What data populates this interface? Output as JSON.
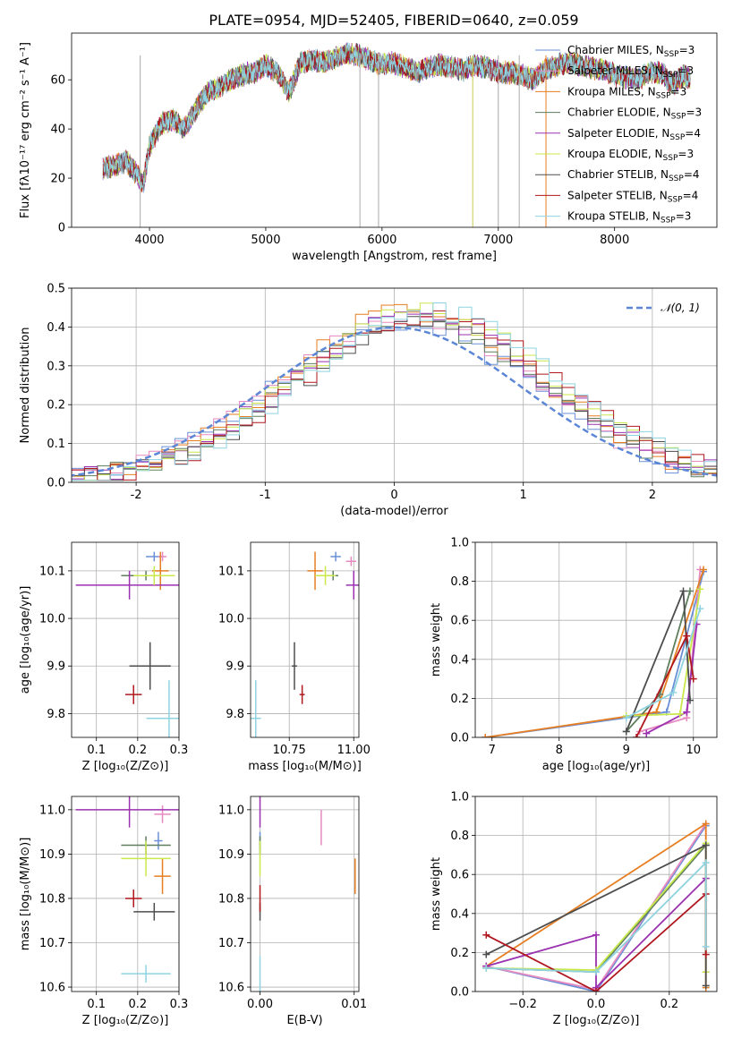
{
  "figure": {
    "title": "PLATE=0954, MJD=52405, FIBERID=0640, z=0.059"
  },
  "models": [
    {
      "label": "Chabrier MILES, N",
      "sub": "SSP",
      "tail": "=3",
      "color": "#6a8fd6"
    },
    {
      "label": "Salpeter MILES, N",
      "sub": "SSP",
      "tail": "=3",
      "color": "#e68ac0"
    },
    {
      "label": "Kroupa MILES, N",
      "sub": "SSP",
      "tail": "=3",
      "color": "#e67e22"
    },
    {
      "label": "Chabrier ELODIE, N",
      "sub": "SSP",
      "tail": "=3",
      "color": "#5e7e5e"
    },
    {
      "label": "Salpeter ELODIE, N",
      "sub": "SSP",
      "tail": "=4",
      "color": "#9b30b0"
    },
    {
      "label": "Kroupa ELODIE, N",
      "sub": "SSP",
      "tail": "=3",
      "color": "#c9e84a"
    },
    {
      "label": "Chabrier STELIB, N",
      "sub": "SSP",
      "tail": "=4",
      "color": "#4d4d4d"
    },
    {
      "label": "Salpeter STELIB, N",
      "sub": "SSP",
      "tail": "=4",
      "color": "#b0171f"
    },
    {
      "label": "Kroupa STELIB, N",
      "sub": "SSP",
      "tail": "=3",
      "color": "#8fd3e0"
    }
  ],
  "chart_data": [
    {
      "id": "spectrum",
      "type": "line",
      "xlabel": "wavelength [Angstrom, rest frame]",
      "ylabel": "Flux [fλ10⁻¹⁷ erg cm⁻² s⁻¹ A⁻¹]",
      "xlim": [
        3330,
        8880
      ],
      "ylim": [
        0,
        79
      ],
      "xticks": [
        4000,
        5000,
        6000,
        7000,
        8000
      ],
      "yticks": [
        0,
        20,
        40,
        60
      ],
      "x": [
        3600,
        3700,
        3800,
        3880,
        3950,
        4000,
        4100,
        4200,
        4300,
        4400,
        4500,
        4600,
        4700,
        4800,
        4900,
        5000,
        5100,
        5200,
        5300,
        5400,
        5500,
        5600,
        5700,
        5800,
        5900,
        6000,
        6100,
        6200,
        6300,
        6400,
        6500,
        6600,
        6700,
        6800,
        6900,
        7000,
        7100,
        7200,
        7300,
        7400,
        7500,
        7600,
        7700,
        7800,
        7900,
        8000,
        8100,
        8200,
        8300,
        8400,
        8500,
        8600,
        8650
      ],
      "flux": [
        24,
        25,
        27,
        22,
        18,
        33,
        42,
        44,
        40,
        48,
        55,
        57,
        60,
        62,
        63,
        66,
        63,
        55,
        67,
        68,
        67,
        69,
        71,
        70,
        68,
        66,
        67,
        65,
        63,
        65,
        66,
        65,
        64,
        66,
        65,
        63,
        63,
        62,
        60,
        64,
        66,
        67,
        66,
        65,
        64,
        62,
        61,
        60,
        63,
        63,
        58,
        62,
        60
      ],
      "dips_x": [
        3920,
        5810,
        5970,
        6780,
        7000,
        7180,
        7410
      ],
      "legend_position": "upper right"
    },
    {
      "id": "residual-histogram",
      "type": "histogram",
      "xlabel": "(data-model)/error",
      "ylabel": "Normed distribution",
      "xlim": [
        -2.5,
        2.5
      ],
      "ylim": [
        0,
        0.5
      ],
      "xticks": [
        -2,
        -1,
        0,
        1,
        2
      ],
      "yticks": [
        0.0,
        0.1,
        0.2,
        0.3,
        0.4,
        0.5
      ],
      "bin_width": 0.1,
      "gaussian_legend": "𝒩(0, 1)",
      "legend_position": "upper right"
    },
    {
      "id": "age-vs-Z",
      "type": "errorbar",
      "xlabel": "Z [log₁₀(Z/Z⊙)]",
      "ylabel": "age  [log₁₀(age/yr)]",
      "xlim": [
        0.04,
        0.3
      ],
      "ylim": [
        9.75,
        10.16
      ],
      "xticks": [
        0.1,
        0.2,
        0.3
      ],
      "yticks": [
        9.8,
        9.9,
        10.0,
        10.1
      ],
      "points": [
        {
          "x": 0.24,
          "xerr": 0.02,
          "y": 10.13,
          "yerr": 0.01
        },
        {
          "x": 0.26,
          "xerr": 0.01,
          "y": 10.13,
          "yerr": 0.01
        },
        {
          "x": 0.255,
          "xerr": 0.02,
          "y": 10.1,
          "yerr": 0.04
        },
        {
          "x": 0.22,
          "xerr": 0.06,
          "y": 10.09,
          "yerr": 0.01
        },
        {
          "x": 0.18,
          "xerr": 0.13,
          "y": 10.07,
          "yerr": 0.03
        },
        {
          "x": 0.24,
          "xerr": 0.05,
          "y": 10.09,
          "yerr": 0.02
        },
        {
          "x": 0.23,
          "xerr": 0.05,
          "y": 9.9,
          "yerr": 0.05
        },
        {
          "x": 0.19,
          "xerr": 0.02,
          "y": 9.84,
          "yerr": 0.02
        },
        {
          "x": 0.276,
          "xerr": 0.055,
          "y": 9.79,
          "yerr": 0.08
        }
      ]
    },
    {
      "id": "age-vs-mass",
      "type": "errorbar",
      "xlabel": "mass [log₁₀(M/M⊙)]",
      "ylabel": "",
      "xlim": [
        10.6,
        11.02
      ],
      "ylim": [
        9.75,
        10.16
      ],
      "xticks": [
        10.75,
        11.0
      ],
      "xtick_labels": [
        "10.75",
        "11.00"
      ],
      "yticks": [
        9.8,
        9.9,
        10.0,
        10.1
      ],
      "points": [
        {
          "x": 10.93,
          "xerr": 0.02,
          "y": 10.13,
          "yerr": 0.01
        },
        {
          "x": 10.99,
          "xerr": 0.02,
          "y": 10.12,
          "yerr": 0.01
        },
        {
          "x": 10.85,
          "xerr": 0.03,
          "y": 10.1,
          "yerr": 0.04
        },
        {
          "x": 10.92,
          "xerr": 0.02,
          "y": 10.09,
          "yerr": 0.01
        },
        {
          "x": 11.0,
          "xerr": 0.03,
          "y": 10.07,
          "yerr": 0.03
        },
        {
          "x": 10.89,
          "xerr": 0.04,
          "y": 10.09,
          "yerr": 0.02
        },
        {
          "x": 10.77,
          "xerr": 0.01,
          "y": 9.9,
          "yerr": 0.05
        },
        {
          "x": 10.8,
          "xerr": 0.01,
          "y": 9.84,
          "yerr": 0.02
        },
        {
          "x": 10.62,
          "xerr": 0.02,
          "y": 9.79,
          "yerr": 0.08
        }
      ]
    },
    {
      "id": "weight-vs-age",
      "type": "line",
      "xlabel": "age  [log₁₀(age/yr)]",
      "ylabel": "mass weight",
      "xlim": [
        6.75,
        10.35
      ],
      "ylim": [
        0,
        1
      ],
      "xticks": [
        7,
        8,
        9,
        10
      ],
      "yticks": [
        0.0,
        0.2,
        0.4,
        0.6,
        0.8,
        1.0
      ],
      "series": [
        {
          "x": [
            6.9,
            9.6,
            10.15
          ],
          "y": [
            0.0,
            0.13,
            0.85
          ]
        },
        {
          "x": [
            9.2,
            9.9,
            10.1
          ],
          "y": [
            0.03,
            0.1,
            0.86
          ]
        },
        {
          "x": [
            6.9,
            9.45,
            10.15
          ],
          "y": [
            0.0,
            0.13,
            0.86
          ]
        },
        {
          "x": [
            9.0,
            9.5,
            9.95
          ],
          "y": [
            0.03,
            0.22,
            0.75
          ]
        },
        {
          "x": [
            9.3,
            9.9,
            10.05
          ],
          "y": [
            0.02,
            0.13,
            0.58
          ]
        },
        {
          "x": [
            9.0,
            9.8,
            10.1
          ],
          "y": [
            0.11,
            0.12,
            0.76
          ]
        },
        {
          "x": [
            9.0,
            9.85,
            9.95
          ],
          "y": [
            0.03,
            0.75,
            0.19
          ]
        },
        {
          "x": [
            9.15,
            9.9,
            10.0
          ],
          "y": [
            0.0,
            0.52,
            0.3
          ]
        },
        {
          "x": [
            9.0,
            9.7,
            10.1
          ],
          "y": [
            0.1,
            0.23,
            0.66
          ]
        }
      ]
    },
    {
      "id": "mass-vs-Z",
      "type": "errorbar",
      "xlabel": "Z [log₁₀(Z/Z⊙)]",
      "ylabel": "mass [log₁₀(M/M⊙)]",
      "xlim": [
        0.04,
        0.3
      ],
      "ylim": [
        10.59,
        11.03
      ],
      "xticks": [
        0.1,
        0.2,
        0.3
      ],
      "yticks": [
        10.6,
        10.7,
        10.8,
        10.9,
        11.0
      ],
      "points": [
        {
          "x": 0.25,
          "xerr": 0.01,
          "y": 10.93,
          "yerr": 0.02
        },
        {
          "x": 0.26,
          "xerr": 0.02,
          "y": 10.99,
          "yerr": 0.02
        },
        {
          "x": 0.26,
          "xerr": 0.02,
          "y": 10.85,
          "yerr": 0.04
        },
        {
          "x": 0.22,
          "xerr": 0.06,
          "y": 10.92,
          "yerr": 0.02
        },
        {
          "x": 0.18,
          "xerr": 0.13,
          "y": 11.0,
          "yerr": 0.04
        },
        {
          "x": 0.22,
          "xerr": 0.06,
          "y": 10.89,
          "yerr": 0.04
        },
        {
          "x": 0.24,
          "xerr": 0.05,
          "y": 10.77,
          "yerr": 0.02
        },
        {
          "x": 0.19,
          "xerr": 0.02,
          "y": 10.8,
          "yerr": 0.02
        },
        {
          "x": 0.22,
          "xerr": 0.06,
          "y": 10.63,
          "yerr": 0.02
        }
      ]
    },
    {
      "id": "mass-vs-EBV",
      "type": "errorbar",
      "xlabel": "E(B-V)",
      "ylabel": "",
      "xlim": [
        -0.001,
        0.0105
      ],
      "ylim": [
        10.59,
        11.03
      ],
      "xticks": [
        0.0,
        0.01
      ],
      "xtick_labels": [
        "0.00",
        "0.01"
      ],
      "yticks": [
        10.6,
        10.7,
        10.8,
        10.9,
        11.0
      ],
      "points": [
        {
          "x": 0.0,
          "xerr": 0,
          "y": 10.93,
          "yerr": 0.02
        },
        {
          "x": 0.0065,
          "xerr": 0,
          "y": 10.96,
          "yerr": 0.04
        },
        {
          "x": 0.0101,
          "xerr": 0,
          "y": 10.85,
          "yerr": 0.04
        },
        {
          "x": 0.0,
          "xerr": 0,
          "y": 10.92,
          "yerr": 0.02
        },
        {
          "x": 0.0,
          "xerr": 0,
          "y": 11.0,
          "yerr": 0.04
        },
        {
          "x": 0.0,
          "xerr": 0,
          "y": 10.89,
          "yerr": 0.04
        },
        {
          "x": 0.0,
          "xerr": 0,
          "y": 10.77,
          "yerr": 0.02
        },
        {
          "x": 0.0,
          "xerr": 0,
          "y": 10.8,
          "yerr": 0.03
        },
        {
          "x": 0.0,
          "xerr": 0,
          "y": 10.63,
          "yerr": 0.04
        }
      ]
    },
    {
      "id": "weight-vs-Z",
      "type": "line",
      "xlabel": "Z [log₁₀(Z/Z⊙)]",
      "ylabel": "mass weight",
      "xlim": [
        -0.33,
        0.33
      ],
      "ylim": [
        0,
        1
      ],
      "xticks": [
        -0.2,
        0.0,
        0.2
      ],
      "xtick_labels": [
        "−0.2",
        "0.0",
        "0.2"
      ],
      "yticks": [
        0.0,
        0.2,
        0.4,
        0.6,
        0.8,
        1.0
      ],
      "series": [
        {
          "x": [
            -0.3,
            0.0,
            0.3
          ],
          "y": [
            0.13,
            0.0,
            0.85
          ]
        },
        {
          "x": [
            -0.3,
            0.0,
            0.3,
            0.3
          ],
          "y": [
            0.13,
            0.01,
            0.86,
            0.1
          ]
        },
        {
          "x": [
            -0.3,
            0.3,
            0.3
          ],
          "y": [
            0.13,
            0.86,
            0.02
          ]
        },
        {
          "x": [
            -0.3,
            0.0,
            0.3
          ],
          "y": [
            0.12,
            0.1,
            0.75
          ]
        },
        {
          "x": [
            -0.3,
            0.0,
            0.0,
            0.3
          ],
          "y": [
            0.13,
            0.29,
            0.02,
            0.58
          ]
        },
        {
          "x": [
            -0.3,
            0.0,
            0.3,
            0.3
          ],
          "y": [
            0.12,
            0.11,
            0.76,
            0.1
          ]
        },
        {
          "x": [
            -0.3,
            0.3,
            0.3
          ],
          "y": [
            0.19,
            0.75,
            0.03
          ]
        },
        {
          "x": [
            -0.3,
            0.0,
            0.3,
            0.3
          ],
          "y": [
            0.29,
            0.0,
            0.5,
            0.19
          ]
        },
        {
          "x": [
            -0.3,
            0.0,
            0.3,
            0.3
          ],
          "y": [
            0.12,
            0.1,
            0.66,
            0.23
          ]
        }
      ]
    }
  ]
}
